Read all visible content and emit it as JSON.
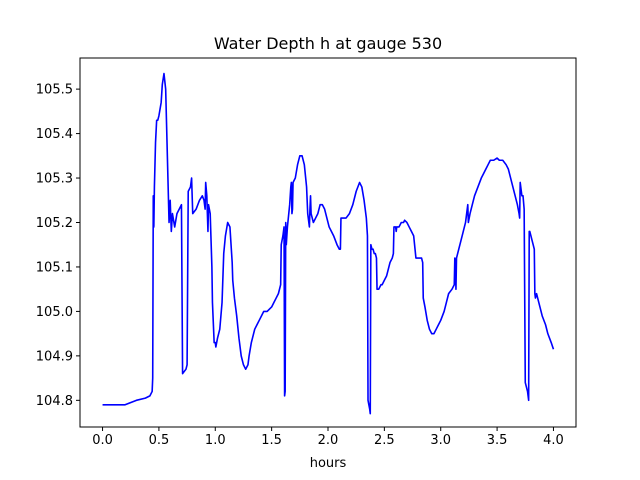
{
  "chart_data": {
    "type": "line",
    "title": "Water Depth h at gauge 530",
    "xlabel": "hours",
    "ylabel": "",
    "xlim": [
      -0.2,
      4.2
    ],
    "ylim": [
      104.74,
      105.57
    ],
    "grid": false,
    "x_ticks": [
      0.0,
      0.5,
      1.0,
      1.5,
      2.0,
      2.5,
      3.0,
      3.5,
      4.0
    ],
    "x_tick_labels": [
      "0.0",
      "0.5",
      "1.0",
      "1.5",
      "2.0",
      "2.5",
      "3.0",
      "3.5",
      "4.0"
    ],
    "y_ticks": [
      104.8,
      104.9,
      105.0,
      105.1,
      105.2,
      105.3,
      105.4,
      105.5
    ],
    "y_tick_labels": [
      "104.8",
      "104.9",
      "105.0",
      "105.1",
      "105.2",
      "105.3",
      "105.4",
      "105.5"
    ],
    "series": [
      {
        "color": "#0000ff",
        "points": [
          [
            0.0,
            104.79
          ],
          [
            0.2,
            104.79
          ],
          [
            0.3,
            104.8
          ],
          [
            0.38,
            104.805
          ],
          [
            0.42,
            104.81
          ],
          [
            0.44,
            104.82
          ],
          [
            0.445,
            104.85
          ],
          [
            0.45,
            105.26
          ],
          [
            0.455,
            105.19
          ],
          [
            0.46,
            105.28
          ],
          [
            0.47,
            105.38
          ],
          [
            0.48,
            105.43
          ],
          [
            0.49,
            105.43
          ],
          [
            0.5,
            105.44
          ],
          [
            0.52,
            105.47
          ],
          [
            0.53,
            105.51
          ],
          [
            0.545,
            105.535
          ],
          [
            0.56,
            105.5
          ],
          [
            0.575,
            105.35
          ],
          [
            0.59,
            105.2
          ],
          [
            0.6,
            105.25
          ],
          [
            0.61,
            105.18
          ],
          [
            0.62,
            105.22
          ],
          [
            0.64,
            105.19
          ],
          [
            0.66,
            105.22
          ],
          [
            0.7,
            105.24
          ],
          [
            0.71,
            104.86
          ],
          [
            0.74,
            104.87
          ],
          [
            0.75,
            104.88
          ],
          [
            0.76,
            105.27
          ],
          [
            0.78,
            105.28
          ],
          [
            0.79,
            105.3
          ],
          [
            0.8,
            105.22
          ],
          [
            0.83,
            105.23
          ],
          [
            0.86,
            105.25
          ],
          [
            0.885,
            105.26
          ],
          [
            0.9,
            105.25
          ],
          [
            0.91,
            105.23
          ],
          [
            0.915,
            105.29
          ],
          [
            0.925,
            105.26
          ],
          [
            0.93,
            105.22
          ],
          [
            0.935,
            105.18
          ],
          [
            0.94,
            105.24
          ],
          [
            0.955,
            105.22
          ],
          [
            0.97,
            105.1
          ],
          [
            0.975,
            105.02
          ],
          [
            0.99,
            104.93
          ],
          [
            1.0,
            104.93
          ],
          [
            1.005,
            104.92
          ],
          [
            1.02,
            104.94
          ],
          [
            1.04,
            104.96
          ],
          [
            1.06,
            105.02
          ],
          [
            1.075,
            105.13
          ],
          [
            1.09,
            105.17
          ],
          [
            1.11,
            105.2
          ],
          [
            1.13,
            105.19
          ],
          [
            1.15,
            105.11
          ],
          [
            1.155,
            105.07
          ],
          [
            1.17,
            105.03
          ],
          [
            1.19,
            104.99
          ],
          [
            1.21,
            104.94
          ],
          [
            1.23,
            104.9
          ],
          [
            1.25,
            104.88
          ],
          [
            1.27,
            104.87
          ],
          [
            1.29,
            104.88
          ],
          [
            1.3,
            104.9
          ],
          [
            1.32,
            104.93
          ],
          [
            1.35,
            104.96
          ],
          [
            1.37,
            104.97
          ],
          [
            1.39,
            104.98
          ],
          [
            1.41,
            104.99
          ],
          [
            1.43,
            105.0
          ],
          [
            1.46,
            105.0
          ],
          [
            1.5,
            105.01
          ],
          [
            1.52,
            105.02
          ],
          [
            1.54,
            105.03
          ],
          [
            1.56,
            105.04
          ],
          [
            1.58,
            105.06
          ],
          [
            1.585,
            105.15
          ],
          [
            1.6,
            105.17
          ],
          [
            1.61,
            105.19
          ],
          [
            1.615,
            104.81
          ],
          [
            1.62,
            104.82
          ],
          [
            1.625,
            105.2
          ],
          [
            1.63,
            105.15
          ],
          [
            1.64,
            105.19
          ],
          [
            1.66,
            105.24
          ],
          [
            1.67,
            105.28
          ],
          [
            1.675,
            105.29
          ],
          [
            1.68,
            105.22
          ],
          [
            1.685,
            105.23
          ],
          [
            1.69,
            105.29
          ],
          [
            1.71,
            105.3
          ],
          [
            1.73,
            105.33
          ],
          [
            1.75,
            105.35
          ],
          [
            1.77,
            105.35
          ],
          [
            1.79,
            105.33
          ],
          [
            1.81,
            105.28
          ],
          [
            1.82,
            105.22
          ],
          [
            1.835,
            105.19
          ],
          [
            1.84,
            105.23
          ],
          [
            1.845,
            105.26
          ],
          [
            1.85,
            105.22
          ],
          [
            1.87,
            105.2
          ],
          [
            1.89,
            105.21
          ],
          [
            1.91,
            105.22
          ],
          [
            1.93,
            105.24
          ],
          [
            1.95,
            105.24
          ],
          [
            1.97,
            105.23
          ],
          [
            1.99,
            105.21
          ],
          [
            2.01,
            105.19
          ],
          [
            2.03,
            105.18
          ],
          [
            2.05,
            105.17
          ],
          [
            2.08,
            105.15
          ],
          [
            2.1,
            105.14
          ],
          [
            2.11,
            105.14
          ],
          [
            2.115,
            105.21
          ],
          [
            2.14,
            105.21
          ],
          [
            2.16,
            105.21
          ],
          [
            2.19,
            105.22
          ],
          [
            2.22,
            105.24
          ],
          [
            2.25,
            105.27
          ],
          [
            2.28,
            105.29
          ],
          [
            2.3,
            105.28
          ],
          [
            2.32,
            105.25
          ],
          [
            2.34,
            105.21
          ],
          [
            2.35,
            105.17
          ],
          [
            2.355,
            104.8
          ],
          [
            2.37,
            104.78
          ],
          [
            2.375,
            104.77
          ],
          [
            2.38,
            105.15
          ],
          [
            2.39,
            105.14
          ],
          [
            2.4,
            105.14
          ],
          [
            2.41,
            105.13
          ],
          [
            2.42,
            105.13
          ],
          [
            2.43,
            105.12
          ],
          [
            2.435,
            105.05
          ],
          [
            2.45,
            105.05
          ],
          [
            2.47,
            105.06
          ],
          [
            2.48,
            105.06
          ],
          [
            2.5,
            105.07
          ],
          [
            2.52,
            105.08
          ],
          [
            2.55,
            105.11
          ],
          [
            2.57,
            105.12
          ],
          [
            2.58,
            105.13
          ],
          [
            2.585,
            105.19
          ],
          [
            2.6,
            105.19
          ],
          [
            2.605,
            105.18
          ],
          [
            2.61,
            105.19
          ],
          [
            2.63,
            105.19
          ],
          [
            2.65,
            105.2
          ],
          [
            2.67,
            105.2
          ],
          [
            2.68,
            105.205
          ],
          [
            2.7,
            105.2
          ],
          [
            2.72,
            105.19
          ],
          [
            2.74,
            105.18
          ],
          [
            2.76,
            105.17
          ],
          [
            2.78,
            105.12
          ],
          [
            2.8,
            105.12
          ],
          [
            2.83,
            105.12
          ],
          [
            2.84,
            105.11
          ],
          [
            2.845,
            105.03
          ],
          [
            2.86,
            105.01
          ],
          [
            2.88,
            104.98
          ],
          [
            2.9,
            104.96
          ],
          [
            2.92,
            104.95
          ],
          [
            2.94,
            104.95
          ],
          [
            2.96,
            104.96
          ],
          [
            2.98,
            104.97
          ],
          [
            3.0,
            104.98
          ],
          [
            3.03,
            105.0
          ],
          [
            3.05,
            105.02
          ],
          [
            3.07,
            105.04
          ],
          [
            3.1,
            105.05
          ],
          [
            3.12,
            105.06
          ],
          [
            3.125,
            105.12
          ],
          [
            3.13,
            105.11
          ],
          [
            3.135,
            105.05
          ],
          [
            3.14,
            105.12
          ],
          [
            3.16,
            105.14
          ],
          [
            3.18,
            105.16
          ],
          [
            3.2,
            105.18
          ],
          [
            3.22,
            105.2
          ],
          [
            3.23,
            105.22
          ],
          [
            3.24,
            105.24
          ],
          [
            3.245,
            105.2
          ],
          [
            3.26,
            105.22
          ],
          [
            3.28,
            105.24
          ],
          [
            3.3,
            105.26
          ],
          [
            3.33,
            105.28
          ],
          [
            3.36,
            105.3
          ],
          [
            3.38,
            105.31
          ],
          [
            3.4,
            105.32
          ],
          [
            3.42,
            105.33
          ],
          [
            3.44,
            105.34
          ],
          [
            3.47,
            105.34
          ],
          [
            3.5,
            105.345
          ],
          [
            3.52,
            105.34
          ],
          [
            3.55,
            105.34
          ],
          [
            3.58,
            105.33
          ],
          [
            3.6,
            105.32
          ],
          [
            3.62,
            105.3
          ],
          [
            3.64,
            105.28
          ],
          [
            3.66,
            105.26
          ],
          [
            3.68,
            105.24
          ],
          [
            3.695,
            105.22
          ],
          [
            3.7,
            105.21
          ],
          [
            3.705,
            105.29
          ],
          [
            3.72,
            105.26
          ],
          [
            3.73,
            105.26
          ],
          [
            3.74,
            105.23
          ],
          [
            3.75,
            104.84
          ],
          [
            3.77,
            104.82
          ],
          [
            3.78,
            104.8
          ],
          [
            3.785,
            105.18
          ],
          [
            3.79,
            105.18
          ],
          [
            3.8,
            105.17
          ],
          [
            3.81,
            105.16
          ],
          [
            3.82,
            105.15
          ],
          [
            3.83,
            105.14
          ],
          [
            3.835,
            105.04
          ],
          [
            3.84,
            105.03
          ],
          [
            3.85,
            105.04
          ],
          [
            3.86,
            105.03
          ],
          [
            3.88,
            105.01
          ],
          [
            3.9,
            104.99
          ],
          [
            3.93,
            104.97
          ],
          [
            3.95,
            104.95
          ],
          [
            3.98,
            104.93
          ],
          [
            4.0,
            104.915
          ]
        ]
      }
    ]
  }
}
